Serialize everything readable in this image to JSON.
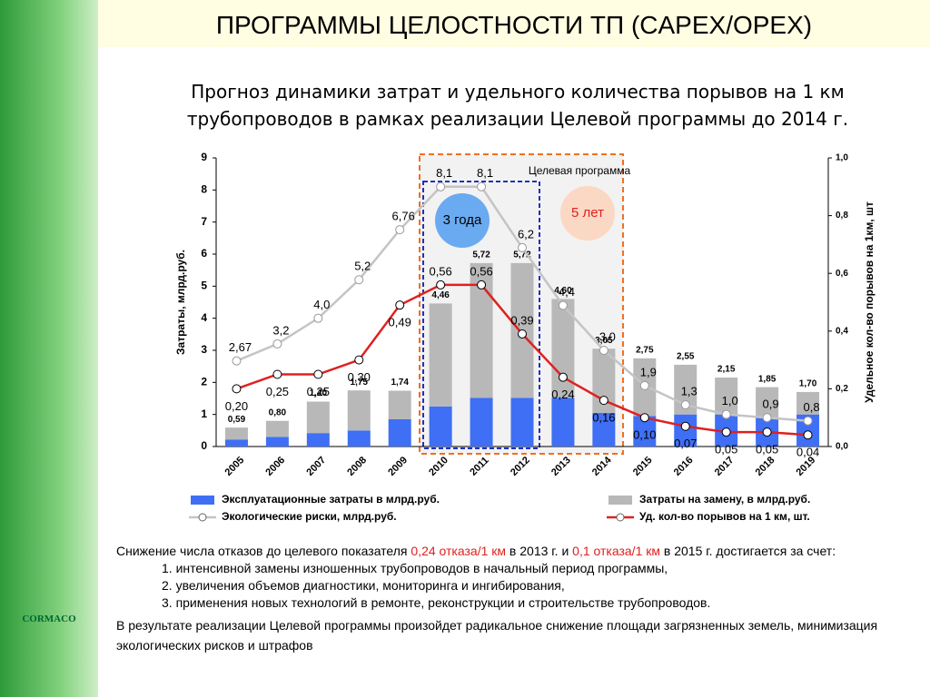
{
  "slide_title": "ПРОГРАММЫ ЦЕЛОСТНОСТИ ТП (CAPEX/OPEX)",
  "subtitle": [
    "Прогноз динамики затрат и удельного количества порывов на 1 км",
    "трубопроводов в рамках реализации Целевой программы до 2014 г."
  ],
  "chart_data": {
    "type": "bar_line",
    "categories": [
      "2005",
      "2006",
      "2007",
      "2008",
      "2009",
      "2010",
      "2011",
      "2012",
      "2013",
      "2014",
      "2015",
      "2016",
      "2017",
      "2018",
      "2019"
    ],
    "ylabel": "Затраты, млрд.руб.",
    "y2label": "Удельное кол-во порывов на 1км, шт",
    "ylim": [
      0,
      9
    ],
    "yticks": [
      0,
      1,
      2,
      3,
      4,
      5,
      6,
      7,
      8,
      9
    ],
    "y2lim": [
      0,
      1
    ],
    "y2ticks": [
      {
        "value": 0,
        "label": "0,0"
      },
      {
        "value": 0.2,
        "label": "0,2"
      },
      {
        "value": 0.4,
        "label": "0,4"
      },
      {
        "value": 0.6,
        "label": "0,6"
      },
      {
        "value": 0.8,
        "label": "0,8"
      },
      {
        "value": 1,
        "label": "1,0"
      }
    ],
    "series": [
      {
        "name": "Эксплуатационные затраты в млрд.руб.",
        "type": "bar",
        "color": "#3f6ff5",
        "values": [
          0.22,
          0.3,
          0.42,
          0.5,
          0.85,
          1.25,
          1.52,
          1.52,
          1.52,
          1.05,
          0.95,
          1.0,
          1.0,
          0.9,
          1.0
        ]
      },
      {
        "name": "Затраты на замену, в млрд.руб.",
        "type": "bar",
        "color": "#b8b8b8",
        "values": [
          0.37,
          0.5,
          0.98,
          1.25,
          0.89,
          3.21,
          4.2,
          4.2,
          3.08,
          2.0,
          1.8,
          1.55,
          1.15,
          0.95,
          0.7
        ]
      },
      {
        "name": "Экологические риски, млрд.руб.",
        "type": "line",
        "color": "#c4c4c4",
        "values": [
          2.67,
          3.2,
          4.0,
          5.2,
          6.76,
          8.1,
          8.1,
          6.2,
          4.4,
          3.0,
          1.9,
          1.3,
          1.0,
          0.9,
          0.8
        ],
        "value_labels": [
          "2,67",
          "3,2",
          "4,0",
          "5,2",
          "6,76",
          "8,1",
          "8,1",
          "6,2",
          "4,4",
          "3,0",
          "1,9",
          "1,3",
          "1,0",
          "0,9",
          "0,8"
        ]
      },
      {
        "name": "Уд. кол-во порывов на 1 км, шт.",
        "type": "line",
        "axis": "y2",
        "color": "#e02020",
        "values": [
          0.2,
          0.25,
          0.25,
          0.3,
          0.49,
          0.56,
          0.56,
          0.39,
          0.24,
          0.16,
          0.1,
          0.07,
          0.05,
          0.05,
          0.04
        ],
        "value_labels": [
          "0,20",
          "0,25",
          "0,25",
          "0,30",
          "0,49",
          "0,56",
          "0,56",
          "0,39",
          "0,24",
          "0,16",
          "0,10",
          "0,07",
          "0,05",
          "0,05",
          "0,04"
        ]
      }
    ],
    "totals": [
      0.59,
      0.8,
      1.4,
      1.75,
      1.74,
      4.46,
      5.72,
      5.72,
      4.6,
      3.05,
      2.75,
      2.55,
      2.15,
      1.85,
      1.7
    ],
    "total_labels": [
      "0,59",
      "0,80",
      "1,40",
      "1,75",
      "1,74",
      "4,46",
      "5,72",
      "5,72",
      "4,60",
      "3,05",
      "2,75",
      "2,55",
      "2,15",
      "1,85",
      "1,70"
    ],
    "annotations": [
      "Целевая программа",
      "3 года",
      "5 лет"
    ]
  },
  "text": {
    "intro": [
      "Снижение числа отказов до целевого показателя ",
      "0,24 отказа/1 км",
      " в 2013 г. и ",
      "0,1 отказа/1 км",
      " в 2015 г. достигается за счет:"
    ],
    "items": [
      "1. интенсивной замены изношенных трубопроводов в начальный период программы,",
      "2. увеличения объемов диагностики, мониторинга и ингибирования,",
      "3. применения новых технологий в ремонте, реконструкции и строительстве трубопроводов."
    ],
    "conclusion": "В результате реализации Целевой программы произойдет радикальное снижение площади загрязненных земель, минимизация экологических рисков и штрафов"
  },
  "logo": "CORMACO"
}
